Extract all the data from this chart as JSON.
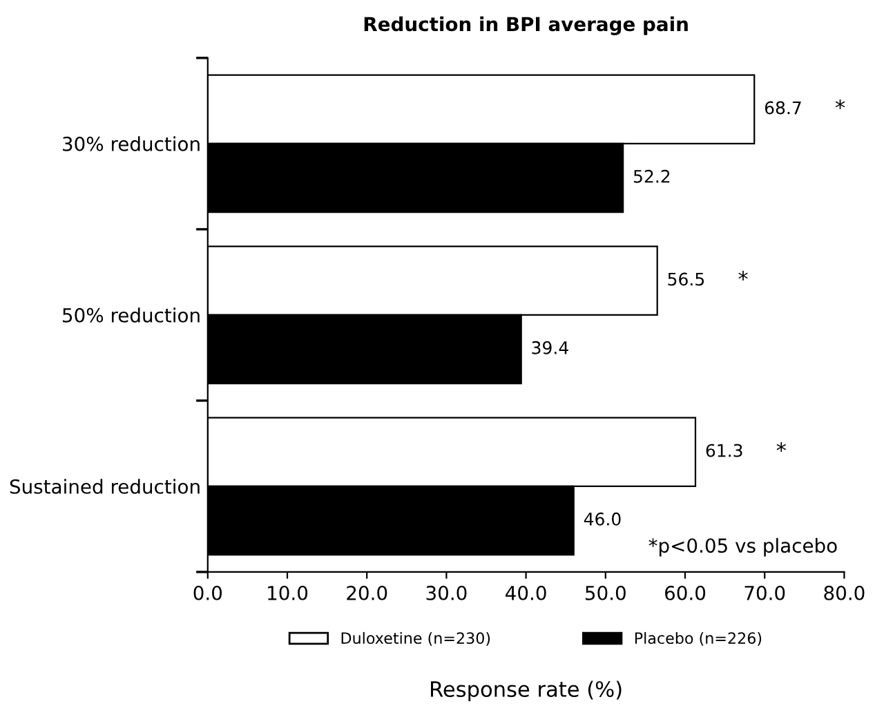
{
  "chart_data": {
    "type": "bar",
    "orientation": "horizontal",
    "title": "Reduction in BPI average pain",
    "xlabel": "Response rate (%)",
    "categories": [
      "30% reduction",
      "50% reduction",
      "Sustained reduction"
    ],
    "series": [
      {
        "name": "Duloxetine (n=230)",
        "color": "#ffffff",
        "values": [
          68.7,
          56.5,
          61.3
        ],
        "value_labels": [
          "68.7",
          "56.5",
          "61.3"
        ]
      },
      {
        "name": "Placebo (n=226)",
        "color": "#000000",
        "values": [
          52.2,
          39.4,
          46.0
        ],
        "value_labels": [
          "52.2",
          "39.4",
          "46.0"
        ]
      }
    ],
    "xlim": [
      0,
      80
    ],
    "xticks": [
      {
        "value": 0,
        "label": "0.0"
      },
      {
        "value": 10,
        "label": "10.0"
      },
      {
        "value": 20,
        "label": "20.0"
      },
      {
        "value": 30,
        "label": "30.0"
      },
      {
        "value": 40,
        "label": "40.0"
      },
      {
        "value": 50,
        "label": "50.0"
      },
      {
        "value": 60,
        "label": "60.0"
      },
      {
        "value": 70,
        "label": "70.0"
      },
      {
        "value": 80,
        "label": "80.0"
      }
    ],
    "annotations": [
      "*",
      "*",
      "*",
      "*p<0.05 vs placebo"
    ],
    "legend": "bottom",
    "grid": false
  }
}
